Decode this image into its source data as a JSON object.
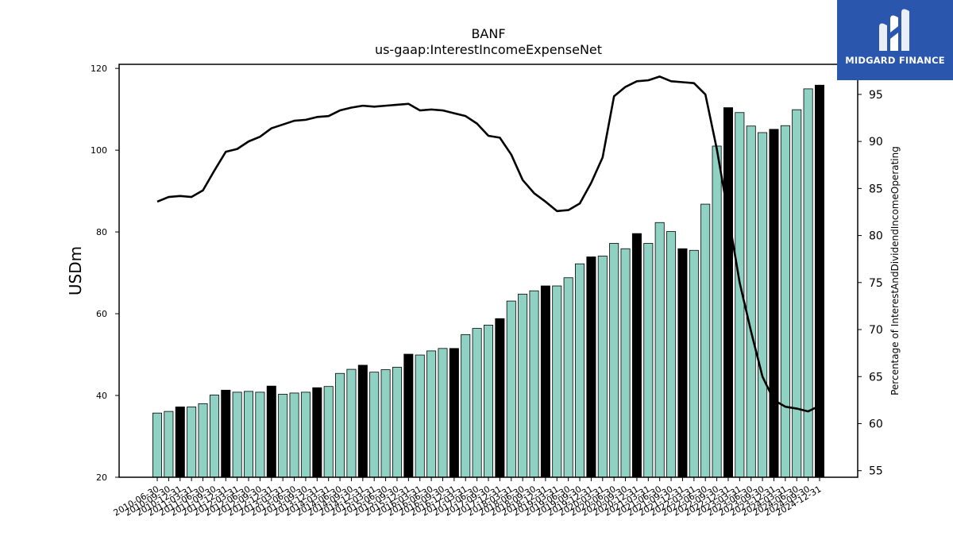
{
  "chart_data": {
    "type": "bar",
    "title": "BANF",
    "subtitle": "us-gaap:InterestIncomeExpenseNet",
    "ylabel": "USDm",
    "y2label": "Percentage of InterestAndDividendIncomeOperating",
    "ylim": [
      20,
      121
    ],
    "y2lim": [
      54.3,
      98.2
    ],
    "yticks": [
      20,
      40,
      60,
      80,
      100,
      120
    ],
    "y2ticks": [
      55,
      60,
      65,
      70,
      75,
      80,
      85,
      90,
      95
    ],
    "categories": [
      "2010-06-30",
      "2010-09-30",
      "2010-12-31",
      "2011-03-31",
      "2011-06-30",
      "2011-09-30",
      "2011-12-31",
      "2012-03-31",
      "2012-06-30",
      "2012-09-30",
      "2012-12-31",
      "2013-03-31",
      "2013-06-30",
      "2013-09-30",
      "2013-12-31",
      "2014-03-31",
      "2014-06-30",
      "2014-09-30",
      "2014-12-31",
      "2015-03-31",
      "2015-06-30",
      "2015-09-30",
      "2015-12-31",
      "2016-03-31",
      "2016-06-30",
      "2016-09-30",
      "2016-12-31",
      "2017-03-31",
      "2017-06-30",
      "2017-09-30",
      "2017-12-31",
      "2018-03-31",
      "2018-06-30",
      "2018-09-30",
      "2018-12-31",
      "2019-03-31",
      "2019-06-30",
      "2019-09-30",
      "2019-12-31",
      "2020-03-31",
      "2020-06-30",
      "2020-09-30",
      "2020-12-31",
      "2021-03-31",
      "2021-06-30",
      "2021-09-30",
      "2021-12-31",
      "2022-03-31",
      "2022-06-30",
      "2022-09-30",
      "2022-12-31",
      "2023-03-31",
      "2023-06-30",
      "2023-09-30",
      "2023-12-31",
      "2024-03-31",
      "2024-06-30",
      "2024-09-30",
      "2024-12-31"
    ],
    "series": [
      {
        "kind": "bar",
        "values": [
          35.7,
          36.1,
          37.2,
          37.2,
          38.0,
          40.1,
          41.3,
          40.8,
          41.0,
          40.8,
          42.3,
          40.3,
          40.6,
          40.8,
          41.9,
          42.2,
          45.4,
          46.4,
          47.4,
          45.7,
          46.3,
          46.9,
          50.1,
          49.9,
          50.9,
          51.5,
          51.5,
          54.9,
          56.4,
          57.2,
          58.8,
          63.1,
          64.8,
          65.6,
          66.8,
          66.8,
          68.8,
          72.2,
          73.9,
          74.1,
          77.2,
          75.9,
          79.6,
          77.2,
          82.3,
          80.1,
          75.9,
          75.5,
          86.8,
          101.0,
          110.4,
          109.2,
          105.9,
          104.3,
          105.1,
          106.0,
          109.9,
          115.0,
          115.9
        ],
        "highlight_color": "#000000",
        "base_color": "#8fd2c4",
        "highlight_every_4th_from_index": 2
      },
      {
        "kind": "line",
        "axis": "right",
        "color": "#000000",
        "values": [
          83.6,
          84.1,
          84.2,
          84.1,
          84.8,
          86.9,
          88.9,
          89.2,
          90.0,
          90.5,
          91.4,
          91.8,
          92.2,
          92.3,
          92.6,
          92.7,
          93.3,
          93.6,
          93.8,
          93.7,
          93.8,
          93.9,
          94.0,
          93.3,
          93.4,
          93.3,
          93.0,
          92.7,
          91.9,
          90.6,
          90.4,
          88.6,
          85.9,
          84.5,
          83.6,
          82.6,
          82.7,
          83.4,
          85.6,
          88.3,
          94.8,
          95.8,
          96.4,
          96.5,
          96.9,
          96.4,
          96.3,
          96.2,
          95.0,
          89.2,
          82.2,
          75.0,
          69.8,
          65.0,
          62.5,
          61.8,
          61.6,
          61.3,
          61.9
        ]
      }
    ],
    "grid": false,
    "legend": "none"
  },
  "logo": {
    "text": "MIDGARD FINANCE",
    "bg": "#2a56ad"
  }
}
